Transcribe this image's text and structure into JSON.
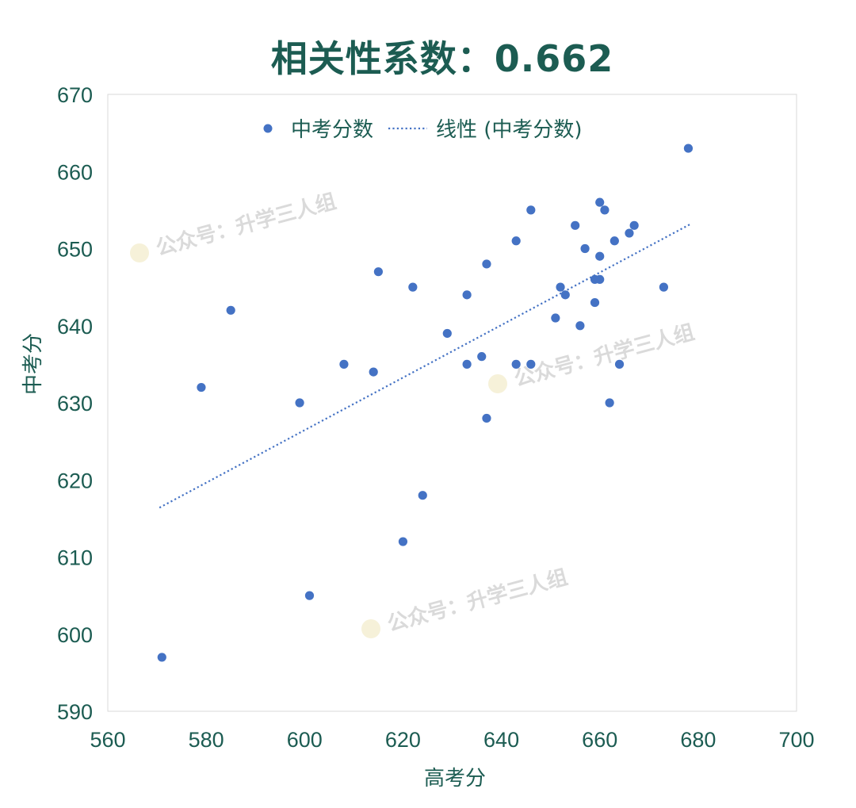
{
  "chart_data": {
    "type": "scatter",
    "title": "相关性系数：0.662",
    "xlabel": "高考分",
    "ylabel": "中考分",
    "xlim": [
      560,
      700
    ],
    "ylim": [
      590,
      670
    ],
    "x_ticks": [
      560,
      580,
      600,
      620,
      640,
      660,
      680,
      700
    ],
    "y_ticks": [
      590,
      600,
      610,
      620,
      630,
      640,
      650,
      660,
      670
    ],
    "legend": {
      "placement": "top-center",
      "marker_label": "中考分数",
      "trend_label": "线性 (中考分数)"
    },
    "series": [
      {
        "name": "中考分数",
        "color": "#4472c4",
        "points": [
          [
            571,
            597
          ],
          [
            579,
            632
          ],
          [
            585,
            642
          ],
          [
            599,
            630
          ],
          [
            601,
            605
          ],
          [
            608,
            635
          ],
          [
            614,
            634
          ],
          [
            615,
            647
          ],
          [
            620,
            612
          ],
          [
            622,
            645
          ],
          [
            624,
            618
          ],
          [
            629,
            639
          ],
          [
            633,
            644
          ],
          [
            633,
            635
          ],
          [
            636,
            636
          ],
          [
            637,
            648
          ],
          [
            637,
            628
          ],
          [
            643,
            651
          ],
          [
            643,
            635
          ],
          [
            646,
            655
          ],
          [
            646,
            635
          ],
          [
            651,
            641
          ],
          [
            652,
            645
          ],
          [
            653,
            644
          ],
          [
            655,
            653
          ],
          [
            656,
            640
          ],
          [
            657,
            650
          ],
          [
            659,
            646
          ],
          [
            659,
            643
          ],
          [
            660,
            656
          ],
          [
            660,
            649
          ],
          [
            660,
            646
          ],
          [
            661,
            655
          ],
          [
            662,
            630
          ],
          [
            663,
            651
          ],
          [
            664,
            635
          ],
          [
            666,
            652
          ],
          [
            667,
            653
          ],
          [
            673,
            645
          ],
          [
            678,
            663
          ]
        ]
      }
    ],
    "trendline": {
      "type": "linear",
      "style": "dotted",
      "color": "#4472c4",
      "x_range": [
        570.5,
        678.5
      ],
      "y_start": 616.4,
      "y_end": 653.2
    }
  },
  "watermark": {
    "text": "公众号：升学三人组"
  }
}
